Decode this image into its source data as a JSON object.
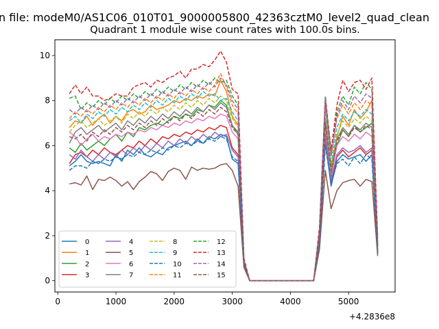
{
  "figure": {
    "suptitle": "n file: modeM0/AS1C06_010T01_9000005800_42363cztM0_level2_quad_clean"
  },
  "chart_data": {
    "type": "line",
    "title": "Quadrant 1 module wise count rates with 100.0s bins.",
    "xlabel": "",
    "ylabel": "",
    "x_offset_label": "+4.2836e8",
    "x_ticks": [
      0,
      1000,
      2000,
      3000,
      4000,
      5000
    ],
    "y_ticks": [
      0,
      2,
      4,
      6,
      8,
      10
    ],
    "xlim": [
      -50,
      5800
    ],
    "ylim": [
      -0.5,
      10.7
    ],
    "grid": false,
    "legend_position": "lower-left",
    "legend_columns": 4,
    "x": [
      200,
      300,
      400,
      500,
      600,
      700,
      800,
      900,
      1000,
      1100,
      1200,
      1300,
      1400,
      1500,
      1600,
      1700,
      1800,
      1900,
      2000,
      2100,
      2200,
      2300,
      2400,
      2500,
      2600,
      2700,
      2800,
      2900,
      3000,
      3100,
      3200,
      3300,
      3400,
      3500,
      3600,
      3700,
      3800,
      3900,
      4000,
      4100,
      4200,
      4300,
      4400,
      4500,
      4600,
      4700,
      4800,
      4900,
      5000,
      5100,
      5200,
      5300,
      5400,
      5500
    ],
    "series": [
      {
        "name": "0",
        "color": "#1f77b4",
        "dash": "solid",
        "values": [
          5.1,
          5.3,
          5.6,
          5.3,
          5.2,
          5.3,
          5.2,
          5.1,
          5.6,
          5.3,
          5.8,
          5.6,
          5.9,
          5.6,
          5.5,
          5.7,
          5.6,
          5.9,
          6.0,
          6.1,
          6.2,
          6.0,
          6.3,
          6.1,
          6.4,
          6.3,
          6.5,
          6.4,
          5.4,
          5.2,
          0.7,
          0,
          0,
          0,
          0,
          0,
          0,
          0,
          0,
          0,
          0,
          0,
          0,
          1.6,
          6.2,
          4.2,
          5.3,
          5.6,
          5.4,
          5.5,
          5.6,
          5.3,
          5.6,
          1.2
        ]
      },
      {
        "name": "1",
        "color": "#ff7f0e",
        "dash": "solid",
        "values": [
          6.8,
          7.1,
          7.0,
          7.3,
          6.9,
          7.2,
          7.4,
          7.0,
          7.3,
          7.1,
          7.5,
          7.6,
          7.4,
          7.5,
          7.8,
          7.6,
          7.7,
          7.8,
          8.0,
          7.9,
          8.1,
          8.0,
          8.2,
          8.1,
          8.3,
          8.2,
          8.9,
          8.4,
          7.3,
          6.9,
          0.8,
          0,
          0,
          0,
          0,
          0,
          0,
          0,
          0,
          0,
          0,
          0,
          0,
          2.1,
          7.8,
          5.0,
          6.4,
          7.3,
          6.9,
          7.6,
          7.2,
          7.5,
          8.0,
          1.6
        ]
      },
      {
        "name": "2",
        "color": "#2ca02c",
        "dash": "solid",
        "values": [
          5.9,
          5.7,
          6.1,
          5.8,
          6.0,
          6.2,
          6.0,
          6.3,
          6.5,
          6.2,
          6.6,
          6.4,
          6.8,
          6.7,
          6.9,
          7.0,
          6.9,
          7.1,
          7.3,
          7.2,
          7.4,
          7.3,
          7.6,
          7.5,
          7.8,
          7.7,
          8.0,
          7.8,
          6.9,
          6.5,
          0.8,
          0,
          0,
          0,
          0,
          0,
          0,
          0,
          0,
          0,
          0,
          0,
          0,
          1.9,
          7.1,
          4.6,
          6.0,
          6.7,
          6.4,
          6.9,
          6.6,
          6.8,
          7.0,
          1.4
        ]
      },
      {
        "name": "3",
        "color": "#d62728",
        "dash": "solid",
        "values": [
          5.2,
          5.6,
          5.7,
          5.5,
          5.8,
          5.6,
          5.9,
          5.7,
          5.6,
          5.8,
          6.0,
          5.9,
          6.2,
          6.0,
          6.3,
          6.1,
          6.4,
          6.3,
          6.5,
          6.4,
          6.6,
          6.5,
          6.7,
          6.6,
          6.8,
          6.7,
          6.9,
          6.8,
          5.9,
          5.6,
          0.7,
          0,
          0,
          0,
          0,
          0,
          0,
          0,
          0,
          0,
          0,
          0,
          0,
          1.7,
          6.5,
          4.3,
          5.5,
          5.8,
          5.5,
          5.7,
          5.9,
          5.6,
          5.8,
          1.3
        ]
      },
      {
        "name": "4",
        "color": "#9467bd",
        "dash": "solid",
        "values": [
          5.6,
          5.4,
          5.8,
          5.5,
          5.3,
          5.6,
          5.4,
          5.7,
          5.5,
          5.8,
          5.6,
          5.9,
          5.7,
          6.0,
          5.8,
          6.1,
          5.9,
          6.2,
          6.0,
          6.3,
          6.1,
          6.4,
          6.2,
          6.5,
          6.3,
          6.6,
          6.4,
          6.5,
          5.8,
          5.5,
          0.7,
          0,
          0,
          0,
          0,
          0,
          0,
          0,
          0,
          0,
          0,
          0,
          0,
          1.7,
          6.4,
          4.4,
          5.6,
          5.9,
          5.7,
          5.8,
          6.0,
          5.7,
          5.9,
          1.3
        ]
      },
      {
        "name": "5",
        "color": "#8c564b",
        "dash": "solid",
        "values": [
          4.3,
          4.35,
          4.25,
          4.65,
          4.05,
          4.5,
          4.45,
          4.6,
          4.45,
          4.2,
          4.4,
          4.05,
          4.4,
          4.6,
          4.85,
          4.75,
          4.45,
          4.85,
          5.0,
          4.9,
          4.5,
          5.05,
          4.9,
          5.0,
          4.95,
          5.0,
          5.15,
          5.2,
          4.9,
          4.2,
          0.6,
          0,
          0,
          0,
          0,
          0,
          0,
          0,
          0,
          0,
          0,
          0,
          0,
          1.4,
          4.9,
          3.2,
          4.0,
          4.35,
          4.45,
          4.5,
          4.2,
          4.5,
          4.4,
          1.1
        ]
      },
      {
        "name": "6",
        "color": "#e377c2",
        "dash": "solid",
        "values": [
          6.6,
          6.4,
          6.0,
          6.3,
          6.5,
          6.2,
          6.4,
          6.3,
          6.5,
          6.4,
          6.6,
          6.5,
          6.7,
          6.6,
          6.8,
          6.7,
          6.9,
          6.8,
          7.0,
          6.9,
          7.1,
          7.0,
          7.2,
          7.1,
          7.3,
          7.2,
          7.4,
          7.3,
          6.6,
          6.3,
          0.8,
          0,
          0,
          0,
          0,
          0,
          0,
          0,
          0,
          0,
          0,
          0,
          0,
          1.8,
          6.9,
          4.7,
          6.0,
          6.4,
          6.2,
          6.5,
          6.3,
          6.6,
          6.4,
          1.4
        ]
      },
      {
        "name": "7",
        "color": "#7f7f7f",
        "dash": "solid",
        "values": [
          6.1,
          6.6,
          6.8,
          6.5,
          6.7,
          6.9,
          6.6,
          6.8,
          7.0,
          6.7,
          7.1,
          6.9,
          7.2,
          7.0,
          7.3,
          7.1,
          7.4,
          7.2,
          7.5,
          7.3,
          7.6,
          7.4,
          7.7,
          7.5,
          7.8,
          7.6,
          7.9,
          7.7,
          6.9,
          6.6,
          0.8,
          0,
          0,
          0,
          0,
          0,
          0,
          0,
          0,
          0,
          0,
          0,
          0,
          1.9,
          7.2,
          4.8,
          6.3,
          6.8,
          6.5,
          6.9,
          6.7,
          7.0,
          6.8,
          1.5
        ]
      },
      {
        "name": "8",
        "color": "#bcbd22",
        "dash": "dashed",
        "values": [
          6.6,
          6.9,
          7.1,
          6.8,
          7.0,
          7.2,
          6.9,
          7.1,
          7.3,
          7.0,
          7.4,
          7.2,
          7.5,
          7.3,
          7.6,
          7.4,
          7.7,
          7.5,
          7.8,
          7.6,
          7.9,
          7.7,
          8.0,
          7.8,
          8.1,
          7.9,
          8.2,
          8.0,
          7.2,
          6.8,
          0.8,
          0,
          0,
          0,
          0,
          0,
          0,
          0,
          0,
          0,
          0,
          0,
          0,
          2.0,
          7.5,
          5.0,
          6.5,
          7.1,
          6.8,
          7.2,
          7.0,
          7.3,
          7.1,
          1.5
        ]
      },
      {
        "name": "9",
        "color": "#17becf",
        "dash": "dashed",
        "values": [
          7.1,
          7.3,
          7.0,
          7.4,
          7.2,
          7.5,
          7.3,
          7.6,
          7.4,
          7.7,
          7.5,
          7.8,
          7.6,
          7.9,
          7.7,
          8.0,
          7.8,
          8.1,
          7.9,
          8.2,
          8.0,
          8.3,
          8.1,
          8.4,
          8.2,
          8.3,
          8.0,
          8.1,
          7.5,
          7.1,
          0.9,
          0,
          0,
          0,
          0,
          0,
          0,
          0,
          0,
          0,
          0,
          0,
          0,
          2.1,
          7.7,
          5.2,
          6.8,
          7.4,
          7.1,
          7.5,
          7.3,
          7.6,
          7.4,
          1.6
        ]
      },
      {
        "name": "10",
        "color": "#1f77b4",
        "dash": "dashed",
        "values": [
          4.9,
          5.1,
          5.1,
          5.0,
          5.3,
          5.2,
          5.4,
          5.3,
          5.5,
          5.4,
          5.6,
          5.5,
          5.7,
          5.6,
          5.8,
          5.7,
          5.9,
          5.8,
          6.0,
          5.9,
          6.1,
          6.0,
          6.2,
          6.1,
          6.3,
          6.2,
          6.4,
          6.3,
          5.5,
          5.3,
          0.7,
          0,
          0,
          0,
          0,
          0,
          0,
          0,
          0,
          0,
          0,
          0,
          0,
          1.6,
          6.0,
          4.3,
          5.2,
          5.4,
          5.1,
          5.5,
          5.2,
          5.6,
          5.4,
          1.2
        ]
      },
      {
        "name": "11",
        "color": "#ff7f0e",
        "dash": "dashed",
        "values": [
          7.2,
          7.5,
          7.3,
          7.6,
          7.4,
          7.7,
          7.5,
          7.8,
          7.6,
          7.9,
          7.7,
          8.0,
          7.8,
          8.1,
          7.9,
          8.2,
          8.0,
          8.3,
          8.1,
          8.4,
          8.2,
          8.5,
          8.3,
          8.6,
          8.4,
          8.7,
          9.2,
          8.6,
          7.8,
          7.4,
          0.9,
          0,
          0,
          0,
          0,
          0,
          0,
          0,
          0,
          0,
          0,
          0,
          0,
          2.2,
          8.0,
          5.5,
          7.2,
          7.8,
          7.4,
          7.9,
          7.6,
          8.0,
          7.8,
          1.7
        ]
      },
      {
        "name": "12",
        "color": "#2ca02c",
        "dash": "dashed",
        "values": [
          8.1,
          8.2,
          7.6,
          7.9,
          7.7,
          8.0,
          7.8,
          8.1,
          7.9,
          8.2,
          8.0,
          8.3,
          8.1,
          8.4,
          8.2,
          8.5,
          8.3,
          8.6,
          8.4,
          8.7,
          8.5,
          8.8,
          8.6,
          8.9,
          8.7,
          9.0,
          8.8,
          8.9,
          8.2,
          7.8,
          0.9,
          0,
          0,
          0,
          0,
          0,
          0,
          0,
          0,
          0,
          0,
          0,
          0,
          2.3,
          8.2,
          5.7,
          7.5,
          8.2,
          7.8,
          8.6,
          8.3,
          8.8,
          8.5,
          1.8
        ]
      },
      {
        "name": "13",
        "color": "#d62728",
        "dash": "dashed",
        "values": [
          8.3,
          8.7,
          8.3,
          8.6,
          8.2,
          8.2,
          8.0,
          8.1,
          8.3,
          8.2,
          8.2,
          8.6,
          8.7,
          8.8,
          8.6,
          8.9,
          8.8,
          9.0,
          9.1,
          9.3,
          9.0,
          9.4,
          9.4,
          9.6,
          9.5,
          9.8,
          10.2,
          9.7,
          8.5,
          8.3,
          1.0,
          0,
          0,
          0,
          0,
          0,
          0,
          0,
          0,
          0,
          0,
          0,
          0,
          2.4,
          8.1,
          5.8,
          7.8,
          8.9,
          8.4,
          8.8,
          8.9,
          8.5,
          9.0,
          1.9
        ]
      },
      {
        "name": "14",
        "color": "#9467bd",
        "dash": "dashed",
        "values": [
          7.6,
          7.4,
          7.7,
          7.5,
          7.8,
          7.6,
          7.9,
          7.7,
          8.0,
          7.8,
          8.1,
          7.9,
          8.2,
          8.0,
          8.3,
          8.1,
          8.4,
          8.2,
          8.5,
          8.3,
          8.6,
          8.4,
          8.7,
          8.5,
          8.8,
          8.6,
          9.0,
          8.7,
          8.0,
          7.6,
          0.9,
          0,
          0,
          0,
          0,
          0,
          0,
          0,
          0,
          0,
          0,
          0,
          0,
          2.2,
          8.1,
          5.6,
          7.3,
          8.0,
          7.6,
          8.2,
          7.9,
          8.3,
          8.1,
          1.7
        ]
      },
      {
        "name": "15",
        "color": "#8c564b",
        "dash": "dashed",
        "values": [
          6.4,
          6.3,
          6.5,
          6.2,
          6.6,
          6.4,
          6.7,
          6.5,
          6.8,
          6.6,
          6.9,
          6.7,
          7.0,
          6.8,
          7.1,
          6.9,
          7.2,
          7.0,
          7.3,
          7.1,
          7.4,
          7.2,
          7.5,
          7.3,
          7.6,
          7.4,
          7.7,
          7.5,
          6.8,
          6.5,
          0.8,
          0,
          0,
          0,
          0,
          0,
          0,
          0,
          0,
          0,
          0,
          0,
          0,
          1.9,
          7.0,
          4.9,
          6.2,
          6.7,
          6.4,
          6.8,
          6.6,
          6.9,
          6.7,
          1.5
        ]
      }
    ]
  }
}
